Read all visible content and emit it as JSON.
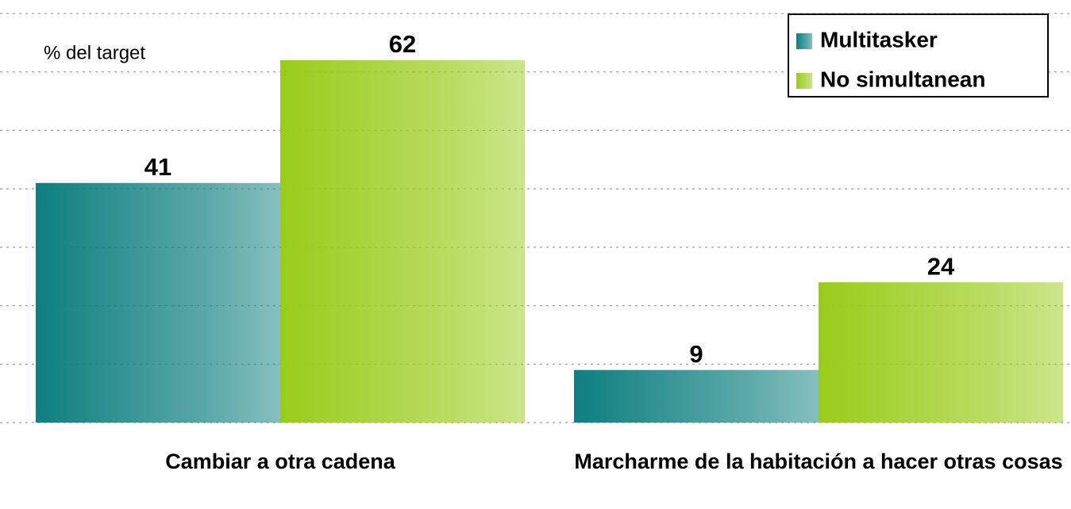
{
  "chart_data": {
    "type": "bar",
    "y_label": "% del target",
    "categories": [
      "Cambiar a otra cadena",
      "Marcharme de la habitación a hacer otras cosas"
    ],
    "series": [
      {
        "name": "Multitasker",
        "color": "#0e7f7f",
        "values": [
          41,
          9
        ]
      },
      {
        "name": "No simultanean",
        "color": "#99cc1a",
        "values": [
          62,
          24
        ]
      }
    ],
    "ylim": [
      0,
      70
    ],
    "yticks": [
      0,
      10,
      20,
      30,
      40,
      50,
      60,
      70
    ],
    "grid": true,
    "legend": "top-right"
  }
}
